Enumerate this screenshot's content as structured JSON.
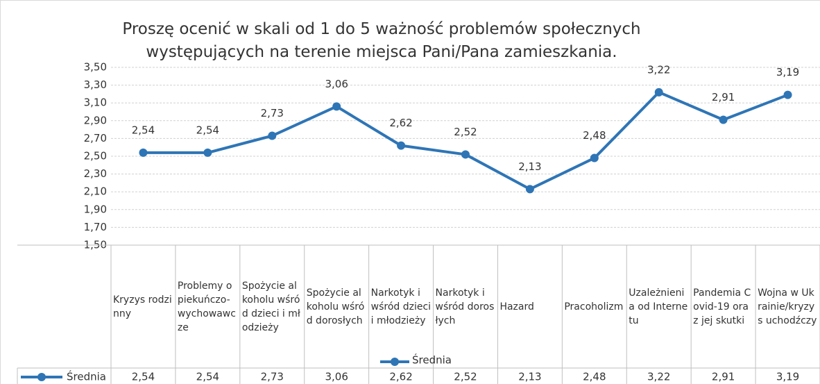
{
  "chart_data": {
    "type": "line",
    "title": "Proszę ocenić w skali od 1 do 5 ważność problemów społecznych występujących na terenie miejsca Pani/Pana zamieszkania.",
    "categories": [
      "Kryzys rodzinny",
      "Problemy opiekuńczo-wychowawcze",
      "Spożycie alkoholu wśród dzieci i młodzieży",
      "Spożycie alkoholu wśród dorosłych",
      "Narkotyk i wśród dzieci i młodzieży",
      "Narkotyk i wśród dorosłych",
      "Hazard",
      "Pracoholizm",
      "Uzależnienia od Internetu",
      "Pandemia Covid-19 oraz jej skutki",
      "Wojna w Ukrainie/kryzys uchodźczy"
    ],
    "series": [
      {
        "name": "Średnia",
        "color": "#2e75b6",
        "values": [
          2.54,
          2.54,
          2.73,
          3.06,
          2.62,
          2.52,
          2.13,
          2.48,
          3.22,
          2.91,
          3.19
        ],
        "value_labels": [
          "2,54",
          "2,54",
          "2,73",
          "3,06",
          "2,62",
          "2,52",
          "2,13",
          "2,48",
          "3,22",
          "2,91",
          "3,19"
        ]
      }
    ],
    "ylim": [
      1.5,
      3.5
    ],
    "yticks": [
      {
        "value": 1.5,
        "label": "1,50"
      },
      {
        "value": 1.7,
        "label": "1,70"
      },
      {
        "value": 1.9,
        "label": "1,90"
      },
      {
        "value": 2.1,
        "label": "2,10"
      },
      {
        "value": 2.3,
        "label": "2,30"
      },
      {
        "value": 2.5,
        "label": "2,50"
      },
      {
        "value": 2.7,
        "label": "2,70"
      },
      {
        "value": 2.9,
        "label": "2,90"
      },
      {
        "value": 3.1,
        "label": "3,10"
      },
      {
        "value": 3.3,
        "label": "3,30"
      },
      {
        "value": 3.5,
        "label": "3,50"
      }
    ],
    "grid": true
  }
}
